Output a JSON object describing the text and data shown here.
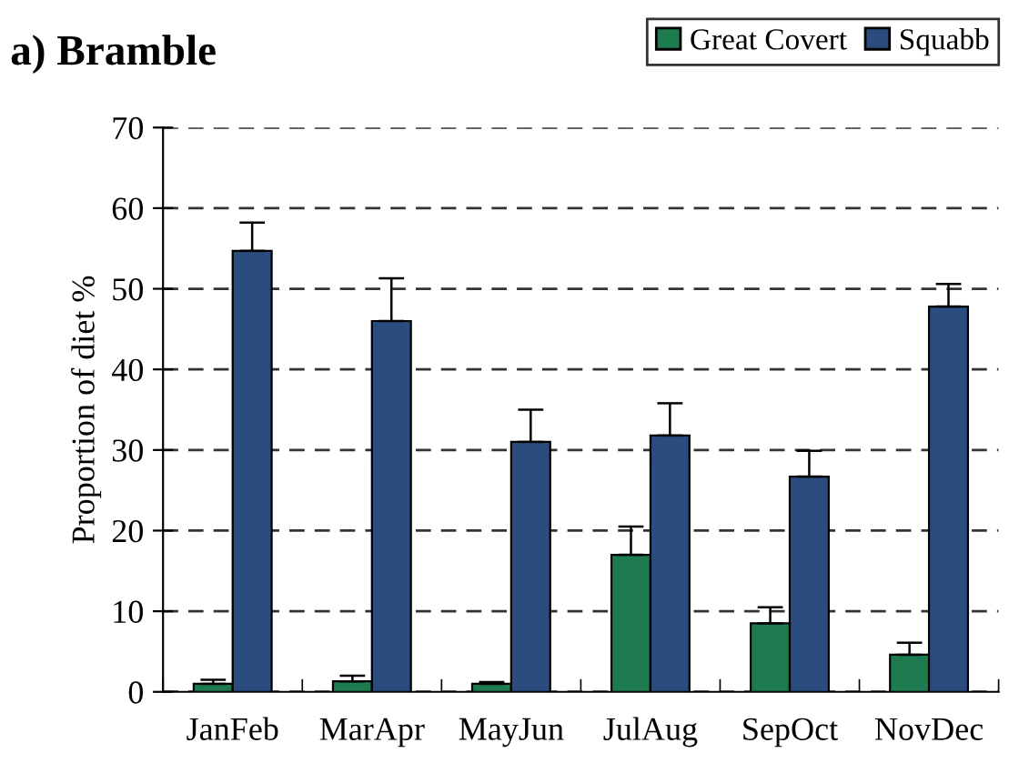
{
  "chart_data": {
    "type": "bar",
    "title": "a) Bramble",
    "ylabel": "Proportion of diet %",
    "categories": [
      "JanFeb",
      "MarApr",
      "MayJun",
      "JulAug",
      "SepOct",
      "NovDec"
    ],
    "series": [
      {
        "name": "Great Covert",
        "color": "#1e7a4f",
        "values": [
          1.0,
          1.3,
          1.0,
          17.0,
          8.5,
          4.6
        ],
        "errors": [
          [
            1.0,
            1.5
          ],
          [
            1.3,
            2.0
          ],
          [
            1.0,
            1.2
          ],
          [
            17.0,
            20.5
          ],
          [
            8.5,
            10.5
          ],
          [
            4.6,
            6.1
          ]
        ]
      },
      {
        "name": "Squabb",
        "color": "#2b4c7e",
        "values": [
          54.7,
          46.0,
          31.0,
          31.8,
          26.7,
          47.8
        ],
        "errors": [
          [
            54.7,
            58.2
          ],
          [
            46.0,
            51.3
          ],
          [
            31.0,
            35.0
          ],
          [
            31.8,
            35.8
          ],
          [
            26.7,
            29.9
          ],
          [
            47.8,
            50.6
          ]
        ]
      }
    ],
    "ylim": [
      0,
      70
    ],
    "yticks": [
      0,
      10,
      20,
      30,
      40,
      50,
      60,
      70
    ],
    "grid": "y",
    "legend": "top right"
  }
}
